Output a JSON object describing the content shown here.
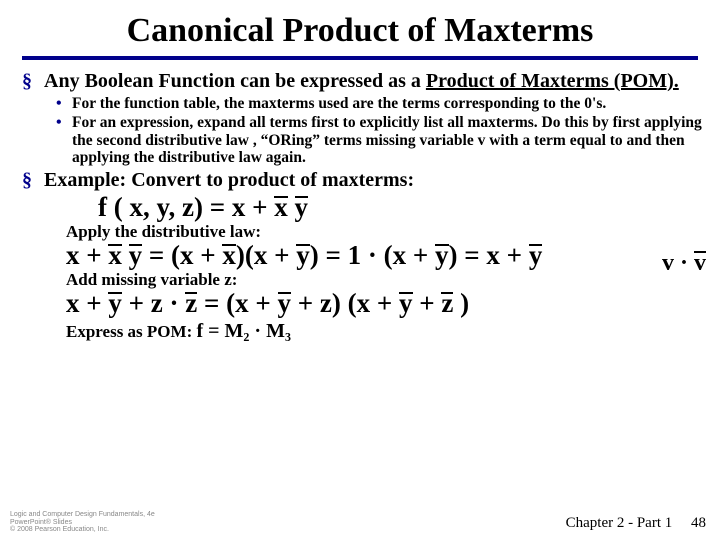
{
  "title": "Canonical Product of Maxterms",
  "bullets": {
    "b1": {
      "pre": "Any Boolean Function can be expressed as a ",
      "underlined": "Product of Maxterms (POM).",
      "sub1": "For the function table, the maxterms used are the terms corresponding to the 0's.",
      "sub2": "For an expression, expand all terms first to explicitly list all maxterms.  Do this by first applying the second distributive law , “ORing” terms missing variable v with a term equal to   and then applying the distributive law again."
    },
    "b2": "Example: Convert to product of maxterms:"
  },
  "inline_term": "v · v",
  "notes": {
    "apply": "Apply the distributive law:",
    "addz": "Add missing variable z:",
    "express_pre": "Express as POM:  ",
    "express_eq": "f = M₂ · M₃"
  },
  "footer": {
    "left1": "Logic and Computer Design Fundamentals, 4e",
    "left2": "PowerPoint® Slides",
    "left3": "© 2008 Pearson Education, Inc.",
    "chapter": "Chapter 2 - Part 1",
    "page": "48"
  },
  "style": {
    "accent_color": "#00008b",
    "bg": "#ffffff",
    "title_fontsize": 34,
    "body_fontsize": 20,
    "sub_fontsize": 15.5,
    "eq_fontsize": 27
  }
}
